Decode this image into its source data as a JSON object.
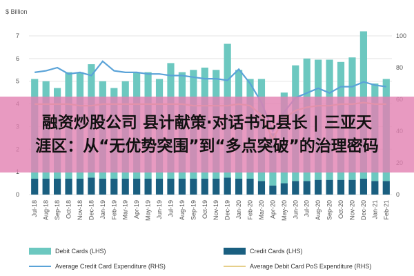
{
  "chart_data": {
    "type": "bar",
    "title": "",
    "left_unit": "$ Billion",
    "left_ylim": [
      0,
      7
    ],
    "left_ticks": [
      0,
      1,
      2,
      3,
      4,
      5,
      6,
      7
    ],
    "right_ylim": [
      0,
      100
    ],
    "right_ticks": [
      0,
      20,
      40,
      60,
      80,
      100
    ],
    "categories": [
      "Jul-18",
      "Aug-18",
      "Sep-18",
      "Oct-18",
      "Nov-18",
      "Dec-18",
      "Jan-19",
      "Feb-19",
      "Mar-19",
      "Apr-19",
      "May-19",
      "Jun-19",
      "Jul-19",
      "Aug-19",
      "Sep-19",
      "Oct-19",
      "Nov-19",
      "Dec-19",
      "Jan-20",
      "Feb-20",
      "Mar-20",
      "Apr-20",
      "May-20",
      "Jun-20",
      "Jul-20",
      "Aug-20",
      "Sep-20",
      "Oct-20",
      "Nov-20",
      "Dec-20",
      "Jan-21",
      "Feb-21"
    ],
    "series": [
      {
        "name": "Debit Cards (LHS)",
        "type": "bar",
        "axis": "left",
        "color": "#6cc8c0",
        "values": [
          4.4,
          4.3,
          4.0,
          4.7,
          4.7,
          5.0,
          4.3,
          4.0,
          4.3,
          4.7,
          4.7,
          4.4,
          5.1,
          4.7,
          4.8,
          4.9,
          4.8,
          5.9,
          4.8,
          4.4,
          4.5,
          2.3,
          4.0,
          5.1,
          5.4,
          5.3,
          5.3,
          5.2,
          5.4,
          6.5,
          4.3,
          4.5
        ]
      },
      {
        "name": "Credit Cards (LHS)",
        "type": "bar",
        "axis": "left",
        "color": "#1a5f80",
        "values": [
          0.7,
          0.7,
          0.7,
          0.7,
          0.7,
          0.75,
          0.7,
          0.7,
          0.7,
          0.7,
          0.7,
          0.7,
          0.7,
          0.7,
          0.7,
          0.7,
          0.7,
          0.75,
          0.7,
          0.7,
          0.6,
          0.4,
          0.5,
          0.6,
          0.6,
          0.65,
          0.65,
          0.65,
          0.65,
          0.7,
          0.6,
          0.6
        ]
      },
      {
        "name": "Average Credit Card Expenditure (RHS)",
        "type": "line",
        "axis": "right",
        "color": "#5aa3d8",
        "values": [
          77,
          78,
          80,
          76,
          77,
          75,
          84,
          78,
          77,
          77,
          76,
          76,
          75,
          75,
          74,
          73,
          73,
          72,
          79,
          70,
          58,
          40,
          52,
          61,
          64,
          67,
          64,
          68,
          68,
          71,
          69,
          68
        ]
      },
      {
        "name": "Average Debit Card PoS Expenditure (RHS)",
        "type": "line",
        "axis": "right",
        "color": "#e6cf8a",
        "values": [
          57,
          57,
          57,
          57,
          56,
          56,
          57,
          57,
          57,
          57,
          57,
          57,
          57,
          57,
          56,
          56,
          56,
          56,
          57,
          56,
          50,
          35,
          48,
          53,
          55,
          56,
          56,
          57,
          57,
          58,
          57,
          57
        ]
      }
    ]
  },
  "overlay": {
    "line1": "融资炒股公司 县计献策·对话书记县长 | 三亚天",
    "line2": "涯区：从“无优势突围”到“多点突破”的治理密码"
  },
  "colors": {
    "grid": "#e3e3e3",
    "axis_text": "#555555",
    "overlay_bg": "#e281b2"
  }
}
